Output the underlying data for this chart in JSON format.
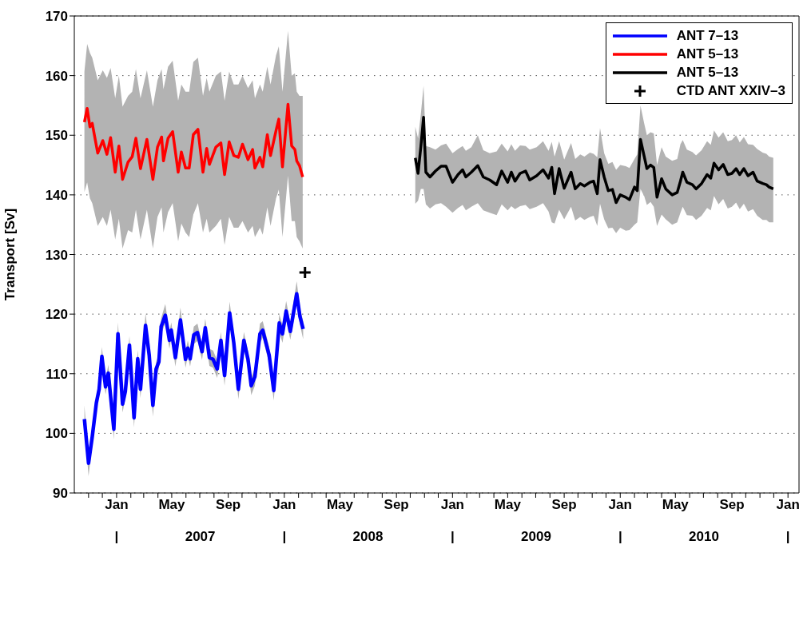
{
  "chart_data": {
    "type": "line",
    "ylabel": "Transport [Sv]",
    "xlim": [
      "2006-10-01",
      "2011-01-25"
    ],
    "ylim": [
      90,
      170
    ],
    "yticks": [
      90,
      100,
      110,
      120,
      130,
      140,
      150,
      160,
      170
    ],
    "xticks": [
      {
        "value": "2006-11-01",
        "label": null
      },
      {
        "value": "2006-12-01",
        "label": null
      },
      {
        "value": "2007-01-01",
        "label": "Jan"
      },
      {
        "value": "2007-02-01",
        "label": null
      },
      {
        "value": "2007-03-01",
        "label": null
      },
      {
        "value": "2007-04-01",
        "label": null
      },
      {
        "value": "2007-05-01",
        "label": "May"
      },
      {
        "value": "2007-06-01",
        "label": null
      },
      {
        "value": "2007-07-01",
        "label": null
      },
      {
        "value": "2007-08-01",
        "label": null
      },
      {
        "value": "2007-09-01",
        "label": "Sep"
      },
      {
        "value": "2007-10-01",
        "label": null
      },
      {
        "value": "2007-11-01",
        "label": null
      },
      {
        "value": "2007-12-01",
        "label": null
      },
      {
        "value": "2008-01-01",
        "label": "Jan"
      },
      {
        "value": "2008-02-01",
        "label": null
      },
      {
        "value": "2008-03-01",
        "label": null
      },
      {
        "value": "2008-04-01",
        "label": null
      },
      {
        "value": "2008-05-01",
        "label": "May"
      },
      {
        "value": "2008-06-01",
        "label": null
      },
      {
        "value": "2008-07-01",
        "label": null
      },
      {
        "value": "2008-08-01",
        "label": null
      },
      {
        "value": "2008-09-01",
        "label": "Sep"
      },
      {
        "value": "2008-10-01",
        "label": null
      },
      {
        "value": "2008-11-01",
        "label": null
      },
      {
        "value": "2008-12-01",
        "label": null
      },
      {
        "value": "2009-01-01",
        "label": "Jan"
      },
      {
        "value": "2009-02-01",
        "label": null
      },
      {
        "value": "2009-03-01",
        "label": null
      },
      {
        "value": "2009-04-01",
        "label": null
      },
      {
        "value": "2009-05-01",
        "label": "May"
      },
      {
        "value": "2009-06-01",
        "label": null
      },
      {
        "value": "2009-07-01",
        "label": null
      },
      {
        "value": "2009-08-01",
        "label": null
      },
      {
        "value": "2009-09-01",
        "label": "Sep"
      },
      {
        "value": "2009-10-01",
        "label": null
      },
      {
        "value": "2009-11-01",
        "label": null
      },
      {
        "value": "2009-12-01",
        "label": null
      },
      {
        "value": "2010-01-01",
        "label": "Jan"
      },
      {
        "value": "2010-02-01",
        "label": null
      },
      {
        "value": "2010-03-01",
        "label": null
      },
      {
        "value": "2010-04-01",
        "label": null
      },
      {
        "value": "2010-05-01",
        "label": "May"
      },
      {
        "value": "2010-06-01",
        "label": null
      },
      {
        "value": "2010-07-01",
        "label": null
      },
      {
        "value": "2010-08-01",
        "label": null
      },
      {
        "value": "2010-09-01",
        "label": "Sep"
      },
      {
        "value": "2010-10-01",
        "label": null
      },
      {
        "value": "2010-11-01",
        "label": null
      },
      {
        "value": "2010-12-01",
        "label": null
      },
      {
        "value": "2011-01-01",
        "label": "Jan"
      }
    ],
    "x2lim": [
      "2006-10-01",
      "2011-01-25"
    ],
    "x2ticks": [
      {
        "value": "2007-01-01",
        "label": "|"
      },
      {
        "value": "2007-07-02",
        "label": "2007"
      },
      {
        "value": "2008-01-01",
        "label": "|"
      },
      {
        "value": "2008-07-01",
        "label": "2008"
      },
      {
        "value": "2009-01-01",
        "label": "|"
      },
      {
        "value": "2009-07-02",
        "label": "2009"
      },
      {
        "value": "2010-01-01",
        "label": "|"
      },
      {
        "value": "2010-07-02",
        "label": "2010"
      },
      {
        "value": "2011-01-01",
        "label": "|"
      }
    ],
    "grid": "y",
    "legend": "top right",
    "series": [
      {
        "name": "ANT 7–13",
        "color": "#0000ff",
        "x": [
          "2006-10-23",
          "2006-11-01",
          "2006-11-09",
          "2006-11-18",
          "2006-11-24",
          "2006-11-30",
          "2006-12-08",
          "2006-12-14",
          "2006-12-26",
          "2007-01-04",
          "2007-01-14",
          "2007-01-20",
          "2007-01-29",
          "2007-02-08",
          "2007-02-16",
          "2007-02-22",
          "2007-03-05",
          "2007-03-13",
          "2007-03-21",
          "2007-03-28",
          "2007-04-03",
          "2007-04-08",
          "2007-04-17",
          "2007-04-26",
          "2007-04-30",
          "2007-05-09",
          "2007-05-20",
          "2007-05-31",
          "2007-06-05",
          "2007-06-10",
          "2007-06-18",
          "2007-06-26",
          "2007-07-06",
          "2007-07-13",
          "2007-07-22",
          "2007-07-30",
          "2007-08-08",
          "2007-08-16",
          "2007-08-24",
          "2007-09-04",
          "2007-09-13",
          "2007-09-23",
          "2007-10-05",
          "2007-10-14",
          "2007-10-21",
          "2007-10-29",
          "2007-11-09",
          "2007-11-15",
          "2007-11-29",
          "2007-12-09",
          "2007-12-21",
          "2007-12-28",
          "2008-01-05",
          "2008-01-14",
          "2008-01-28",
          "2008-02-04",
          "2008-02-11"
        ],
        "values": [
          102.4,
          95.0,
          99.4,
          105.1,
          107.4,
          112.9,
          107.8,
          110.1,
          100.7,
          116.7,
          104.9,
          107.0,
          114.8,
          102.6,
          112.5,
          107.4,
          118.1,
          113.1,
          104.7,
          110.8,
          112.0,
          117.9,
          119.8,
          115.6,
          117.3,
          112.7,
          119.0,
          112.4,
          114.3,
          112.5,
          116.5,
          116.9,
          113.7,
          117.7,
          112.7,
          112.4,
          110.8,
          115.6,
          109.7,
          120.2,
          115.2,
          107.4,
          115.6,
          112.4,
          108.0,
          109.5,
          116.7,
          117.3,
          113.1,
          107.2,
          118.5,
          116.7,
          120.5,
          117.1,
          123.4,
          119.6,
          117.5
        ],
        "lower": [
          101.6,
          92.8,
          98.2,
          104.0,
          106.3,
          111.6,
          106.5,
          109.0,
          99.0,
          115.2,
          103.5,
          105.8,
          113.3,
          101.0,
          111.2,
          105.9,
          116.8,
          111.8,
          102.8,
          109.5,
          110.8,
          116.6,
          118.5,
          114.2,
          116.0,
          111.2,
          117.6,
          111.0,
          113.0,
          111.2,
          115.0,
          115.5,
          112.3,
          116.3,
          111.3,
          111.0,
          109.3,
          114.2,
          108.0,
          118.6,
          113.8,
          105.7,
          114.1,
          111.0,
          106.4,
          108.0,
          115.2,
          116.0,
          111.7,
          105.5,
          117.0,
          115.2,
          119.0,
          115.7,
          121.7,
          118.2,
          115.8
        ],
        "upper": [
          104.7,
          96.0,
          100.6,
          106.2,
          108.5,
          114.5,
          109.0,
          111.5,
          101.8,
          118.6,
          106.0,
          108.2,
          116.3,
          103.6,
          114.0,
          108.6,
          120.2,
          114.5,
          105.8,
          112.0,
          113.3,
          119.3,
          121.7,
          117.0,
          118.6,
          114.0,
          121.1,
          113.8,
          115.6,
          113.8,
          117.9,
          118.4,
          115.0,
          119.2,
          114.2,
          113.9,
          112.2,
          117.0,
          111.0,
          122.1,
          116.6,
          108.8,
          117.0,
          113.8,
          109.4,
          111.0,
          118.4,
          118.8,
          114.5,
          108.6,
          120.0,
          118.2,
          122.2,
          118.6,
          125.5,
          121.0,
          118.8
        ]
      },
      {
        "name": "ANT 5–13",
        "color": "#ff0000",
        "x": [
          "2006-10-23",
          "2006-10-29",
          "2006-11-04",
          "2006-11-09",
          "2006-11-21",
          "2006-12-02",
          "2006-12-11",
          "2006-12-19",
          "2006-12-29",
          "2007-01-06",
          "2007-01-14",
          "2007-01-26",
          "2007-02-04",
          "2007-02-12",
          "2007-02-22",
          "2007-03-08",
          "2007-03-21",
          "2007-03-31",
          "2007-04-09",
          "2007-04-13",
          "2007-04-23",
          "2007-05-03",
          "2007-05-15",
          "2007-05-22",
          "2007-05-31",
          "2007-06-08",
          "2007-06-17",
          "2007-06-27",
          "2007-07-08",
          "2007-07-16",
          "2007-07-22",
          "2007-08-05",
          "2007-08-16",
          "2007-08-24",
          "2007-09-03",
          "2007-09-13",
          "2007-09-23",
          "2007-10-02",
          "2007-10-14",
          "2007-10-24",
          "2007-10-29",
          "2007-11-09",
          "2007-11-15",
          "2007-11-25",
          "2007-12-02",
          "2007-12-14",
          "2007-12-20",
          "2007-12-28",
          "2008-01-09",
          "2008-01-17",
          "2008-01-24",
          "2008-01-28",
          "2008-02-03",
          "2008-02-10"
        ],
        "values": [
          152.2,
          154.5,
          151.4,
          152.0,
          147.0,
          149.1,
          146.8,
          149.6,
          143.8,
          148.2,
          142.6,
          145.5,
          146.4,
          149.5,
          144.4,
          149.3,
          142.6,
          148.0,
          149.7,
          145.7,
          149.5,
          150.6,
          143.8,
          147.2,
          144.5,
          144.5,
          150.1,
          151.0,
          143.8,
          147.8,
          145.1,
          148.0,
          148.7,
          143.4,
          148.9,
          146.6,
          146.3,
          148.5,
          145.9,
          147.6,
          144.5,
          146.3,
          144.7,
          150.1,
          146.6,
          150.8,
          152.7,
          144.7,
          155.2,
          148.2,
          147.6,
          145.7,
          144.9,
          143.0
        ],
        "lower": [
          140.5,
          142.1,
          139.4,
          138.6,
          134.8,
          136.3,
          134.8,
          137.5,
          132.5,
          136.0,
          131.0,
          134.1,
          133.7,
          137.5,
          132.5,
          137.5,
          131.0,
          136.3,
          137.9,
          133.7,
          137.1,
          138.6,
          132.2,
          135.2,
          133.7,
          132.9,
          136.7,
          138.6,
          133.7,
          136.0,
          133.7,
          134.8,
          136.0,
          131.6,
          136.3,
          134.5,
          134.5,
          135.6,
          133.7,
          134.8,
          132.9,
          134.5,
          133.3,
          137.9,
          134.8,
          139.4,
          140.9,
          132.9,
          143.2,
          135.6,
          135.6,
          132.9,
          132.2,
          131.0
        ],
        "upper": [
          160.7,
          165.3,
          163.8,
          163.0,
          159.2,
          160.9,
          159.6,
          161.3,
          156.2,
          160.0,
          154.8,
          156.6,
          157.3,
          161.1,
          156.2,
          160.9,
          154.8,
          159.2,
          161.1,
          157.7,
          161.5,
          162.5,
          155.8,
          158.5,
          157.3,
          157.3,
          162.3,
          163.0,
          156.6,
          159.6,
          157.3,
          160.0,
          160.7,
          155.8,
          160.7,
          158.5,
          158.5,
          160.0,
          157.9,
          159.2,
          156.2,
          158.5,
          157.3,
          161.5,
          158.5,
          163.4,
          164.9,
          157.3,
          167.5,
          160.0,
          160.4,
          157.3,
          156.6,
          156.6
        ]
      },
      {
        "name": "ANT 5–13",
        "color": "#000000",
        "x": [
          "2008-10-12",
          "2008-10-18",
          "2008-10-24",
          "2008-10-30",
          "2008-11-04",
          "2008-11-13",
          "2008-11-25",
          "2008-12-07",
          "2008-12-18",
          "2009-01-01",
          "2009-01-13",
          "2009-01-23",
          "2009-01-30",
          "2009-02-11",
          "2009-02-25",
          "2009-03-09",
          "2009-03-23",
          "2009-04-07",
          "2009-04-18",
          "2009-05-01",
          "2009-05-09",
          "2009-05-17",
          "2009-05-28",
          "2009-06-09",
          "2009-06-18",
          "2009-07-03",
          "2009-07-17",
          "2009-07-29",
          "2009-08-05",
          "2009-08-11",
          "2009-08-21",
          "2009-09-01",
          "2009-09-16",
          "2009-09-25",
          "2009-10-06",
          "2009-10-15",
          "2009-10-27",
          "2009-11-04",
          "2009-11-12",
          "2009-11-18",
          "2009-11-27",
          "2009-12-06",
          "2009-12-15",
          "2009-12-23",
          "2010-01-01",
          "2010-01-13",
          "2010-01-21",
          "2010-02-01",
          "2010-02-07",
          "2010-02-14",
          "2010-02-22",
          "2010-02-28",
          "2010-03-08",
          "2010-03-15",
          "2010-03-22",
          "2010-04-01",
          "2010-04-10",
          "2010-04-24",
          "2010-05-05",
          "2010-05-12",
          "2010-05-17",
          "2010-05-26",
          "2010-06-07",
          "2010-06-15",
          "2010-06-27",
          "2010-07-09",
          "2010-07-17",
          "2010-07-24",
          "2010-08-03",
          "2010-08-13",
          "2010-08-23",
          "2010-09-01",
          "2010-09-10",
          "2010-09-18",
          "2010-09-27",
          "2010-10-06",
          "2010-10-17",
          "2010-10-26",
          "2010-11-07",
          "2010-11-15",
          "2010-11-21",
          "2010-11-30"
        ],
        "values": [
          146.2,
          143.6,
          148.0,
          153.0,
          143.8,
          143.0,
          144.0,
          144.8,
          144.8,
          142.1,
          143.4,
          144.2,
          143.0,
          143.8,
          144.9,
          143.0,
          142.5,
          141.7,
          144.0,
          142.1,
          143.8,
          142.3,
          143.6,
          144.0,
          142.5,
          143.2,
          144.2,
          142.8,
          144.6,
          140.2,
          144.4,
          141.1,
          143.8,
          141.0,
          141.9,
          141.5,
          142.1,
          142.3,
          140.2,
          145.9,
          143.0,
          140.7,
          140.9,
          138.7,
          140.0,
          139.6,
          139.2,
          141.3,
          140.7,
          149.3,
          146.5,
          144.4,
          145.0,
          144.6,
          139.6,
          142.7,
          141.0,
          140.0,
          140.4,
          142.3,
          143.8,
          142.1,
          141.7,
          141.0,
          141.9,
          143.4,
          142.8,
          145.3,
          144.2,
          145.1,
          143.4,
          143.6,
          144.4,
          143.4,
          144.4,
          143.2,
          143.8,
          142.3,
          141.9,
          141.7,
          141.3,
          141.0
        ],
        "lower": [
          138.5,
          139.0,
          141.0,
          141.0,
          138.4,
          137.7,
          138.4,
          138.6,
          138.0,
          137.0,
          137.8,
          138.3,
          137.4,
          138.0,
          138.6,
          137.4,
          137.0,
          136.6,
          138.4,
          137.4,
          138.1,
          137.6,
          138.1,
          138.3,
          137.6,
          138.0,
          138.6,
          137.2,
          135.4,
          135.2,
          137.5,
          135.9,
          138.0,
          135.7,
          136.3,
          135.8,
          136.3,
          136.5,
          134.8,
          138.5,
          135.9,
          134.4,
          134.5,
          133.6,
          134.5,
          134.0,
          134.1,
          135.0,
          135.4,
          141.0,
          139.8,
          138.3,
          138.8,
          138.0,
          134.8,
          136.7,
          135.9,
          135.0,
          135.4,
          137.0,
          138.0,
          136.6,
          136.5,
          135.8,
          136.5,
          137.8,
          137.4,
          139.8,
          138.4,
          139.3,
          137.7,
          138.0,
          138.7,
          137.6,
          138.5,
          137.2,
          137.6,
          136.5,
          135.8,
          135.8,
          135.4,
          135.4
        ],
        "upper": [
          151.4,
          149.5,
          153.5,
          158.3,
          148.2,
          148.0,
          147.6,
          148.3,
          148.6,
          147.0,
          147.7,
          148.2,
          147.4,
          148.0,
          150.0,
          147.5,
          147.0,
          147.3,
          148.6,
          147.3,
          148.5,
          147.4,
          148.3,
          148.2,
          147.6,
          148.0,
          149.0,
          147.4,
          148.9,
          146.4,
          149.0,
          145.9,
          148.7,
          146.0,
          146.8,
          146.4,
          147.1,
          146.9,
          146.3,
          151.2,
          147.0,
          145.2,
          145.5,
          144.2,
          145.0,
          144.8,
          144.5,
          146.0,
          146.8,
          155.0,
          152.0,
          150.0,
          150.5,
          150.3,
          145.0,
          148.0,
          146.4,
          145.7,
          146.0,
          148.5,
          149.2,
          147.6,
          147.2,
          146.6,
          147.5,
          149.0,
          148.4,
          150.8,
          149.6,
          150.5,
          149.0,
          149.2,
          150.0,
          148.8,
          149.7,
          148.5,
          148.4,
          147.7,
          147.1,
          146.9,
          146.4,
          146.2
        ]
      },
      {
        "name": "CTD ANT XXIV–3",
        "type": "scatter",
        "color": "#000000",
        "marker": "cross",
        "x": [
          "2008-02-15"
        ],
        "values": [
          127.0
        ]
      }
    ]
  }
}
